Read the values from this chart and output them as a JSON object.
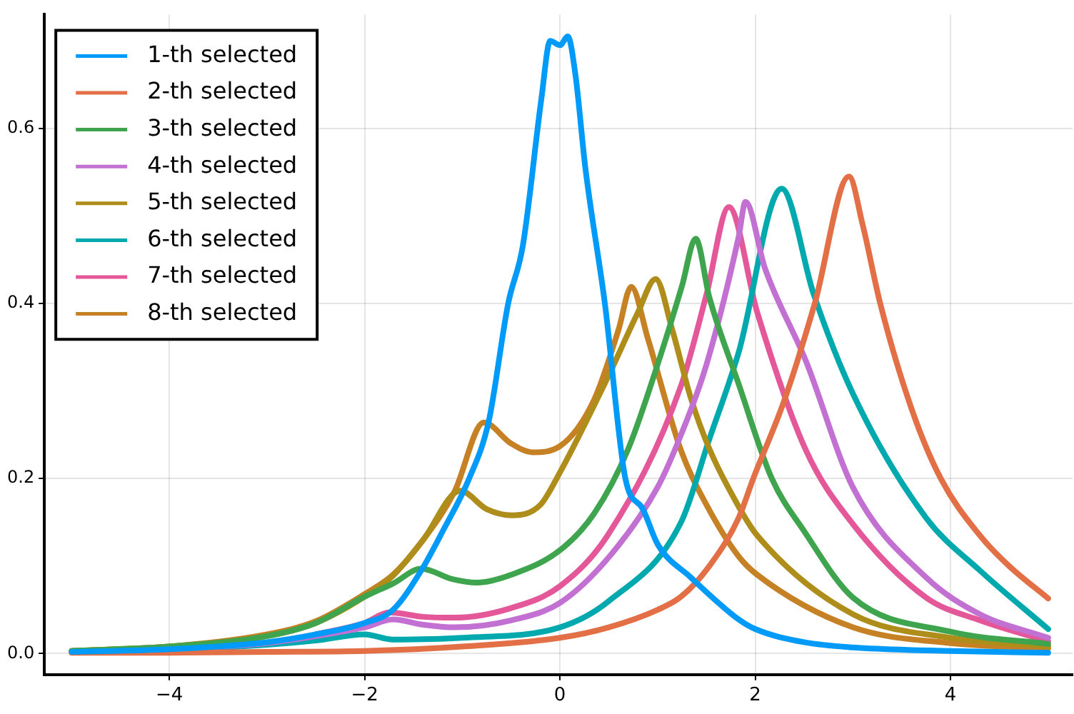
{
  "chart_data": {
    "type": "line",
    "xlim": [
      -5.28,
      5.25
    ],
    "ylim": [
      -0.024,
      0.73
    ],
    "xticks": [
      {
        "value": -4,
        "label": "−4"
      },
      {
        "value": -2,
        "label": "−2"
      },
      0,
      2,
      4
    ],
    "yticks": [
      {
        "value": 0,
        "label": "0.0"
      },
      {
        "value": 0.2,
        "label": "0.2"
      },
      {
        "value": 0.4,
        "label": "0.4"
      },
      {
        "value": 0.6,
        "label": "0.6"
      }
    ],
    "grid": true,
    "legend": "top left",
    "marker": "none",
    "line_style": "solid",
    "series": [
      {
        "name": "1-th selected",
        "color": "#009af9",
        "x": [
          -5,
          -4,
          -3,
          -2.5,
          -2,
          -1.71,
          -1.42,
          -1.2,
          -0.93,
          -0.73,
          -0.53,
          -0.38,
          -0.19,
          -0.1,
          0,
          0.08,
          0.16,
          0.26,
          0.46,
          0.67,
          0.85,
          1,
          1.34,
          1.83,
          2,
          2.5,
          3,
          4,
          5
        ],
        "values": [
          0.002,
          0.005,
          0.013,
          0.022,
          0.035,
          0.05,
          0.095,
          0.14,
          0.2,
          0.265,
          0.4,
          0.466,
          0.634,
          0.7,
          0.695,
          0.705,
          0.66,
          0.555,
          0.4,
          0.2,
          0.165,
          0.125,
          0.087,
          0.039,
          0.028,
          0.013,
          0.007,
          0.003,
          0.001
        ]
      },
      {
        "name": "2-th selected",
        "color": "#e26f46",
        "x": [
          -5,
          -4,
          -3,
          -2,
          -1,
          0,
          0.5,
          1,
          1.24,
          1.53,
          1.83,
          1.98,
          2.3,
          2.61,
          2.96,
          3.1,
          3.28,
          3.6,
          3.9,
          4.3,
          4.6,
          5
        ],
        "values": [
          0.001,
          0.001,
          0.002,
          0.003,
          0.008,
          0.018,
          0.03,
          0.05,
          0.065,
          0.1,
          0.155,
          0.2,
          0.29,
          0.4,
          0.545,
          0.49,
          0.4,
          0.28,
          0.2,
          0.135,
          0.1,
          0.063
        ]
      },
      {
        "name": "3-th selected",
        "color": "#3ea44e",
        "x": [
          -5,
          -4,
          -3,
          -2.5,
          -2,
          -1.71,
          -1.42,
          -1.1,
          -0.85,
          -0.5,
          0,
          0.35,
          0.7,
          1.04,
          1.25,
          1.39,
          1.53,
          1.83,
          2.17,
          2.5,
          3,
          4,
          5
        ],
        "values": [
          0.003,
          0.008,
          0.02,
          0.035,
          0.065,
          0.08,
          0.097,
          0.085,
          0.081,
          0.09,
          0.118,
          0.16,
          0.234,
          0.344,
          0.42,
          0.474,
          0.407,
          0.308,
          0.2,
          0.14,
          0.064,
          0.025,
          0.011
        ]
      },
      {
        "name": "4-th selected",
        "color": "#c270d2",
        "x": [
          -5,
          -4,
          -3,
          -2.5,
          -2,
          -1.71,
          -1.4,
          -1.08,
          -0.5,
          0,
          0.5,
          1,
          1.24,
          1.5,
          1.83,
          1.9,
          2.1,
          2.52,
          3,
          3.75,
          4.3,
          5
        ],
        "values": [
          0.002,
          0.005,
          0.012,
          0.02,
          0.03,
          0.039,
          0.033,
          0.03,
          0.038,
          0.058,
          0.11,
          0.19,
          0.25,
          0.33,
          0.476,
          0.516,
          0.44,
          0.334,
          0.19,
          0.087,
          0.045,
          0.018
        ]
      },
      {
        "name": "5-th selected",
        "color": "#ae8d1a",
        "x": [
          -5,
          -4,
          -3,
          -2.5,
          -2,
          -1.71,
          -1.4,
          -1.02,
          -0.75,
          -0.49,
          -0.2,
          0,
          0.5,
          0.8,
          0.98,
          1.15,
          1.34,
          1.53,
          1.83,
          2.02,
          3,
          4,
          5
        ],
        "values": [
          0.003,
          0.008,
          0.02,
          0.035,
          0.065,
          0.089,
          0.13,
          0.186,
          0.165,
          0.158,
          0.17,
          0.207,
          0.318,
          0.39,
          0.428,
          0.37,
          0.292,
          0.234,
          0.168,
          0.135,
          0.045,
          0.018,
          0.008
        ]
      },
      {
        "name": "6-th selected",
        "color": "#00a9ad",
        "x": [
          -5,
          -4,
          -3,
          -2.5,
          -2,
          -1.71,
          -1,
          0,
          0.5,
          1.24,
          1.53,
          1.83,
          2.27,
          2.6,
          3,
          3.75,
          4.3,
          5
        ],
        "values": [
          0.002,
          0.004,
          0.01,
          0.015,
          0.022,
          0.016,
          0.018,
          0.03,
          0.06,
          0.15,
          0.245,
          0.344,
          0.531,
          0.41,
          0.297,
          0.155,
          0.095,
          0.028
        ]
      },
      {
        "name": "7-th selected",
        "color": "#e4589a",
        "x": [
          -2.5,
          -2,
          -1.75,
          -1.4,
          -1.08,
          -0.5,
          0,
          0.5,
          1.24,
          1.5,
          1.73,
          2.02,
          2.52,
          3,
          3.75,
          4.3,
          5
        ],
        "values": [
          0.022,
          0.035,
          0.047,
          0.042,
          0.041,
          0.052,
          0.077,
          0.137,
          0.306,
          0.41,
          0.51,
          0.39,
          0.232,
          0.148,
          0.064,
          0.038,
          0.014
        ]
      },
      {
        "name": "8-th selected",
        "color": "#c68125",
        "x": [
          -5,
          -4,
          -3,
          -2.5,
          -2,
          -1.71,
          -1.4,
          -1.08,
          -0.78,
          -0.5,
          -0.28,
          0,
          0.35,
          0.6,
          0.73,
          0.9,
          1.24,
          1.5,
          1.83,
          2.02,
          3,
          4,
          5
        ],
        "values": [
          0.003,
          0.008,
          0.022,
          0.037,
          0.068,
          0.09,
          0.13,
          0.185,
          0.264,
          0.24,
          0.23,
          0.237,
          0.29,
          0.37,
          0.419,
          0.36,
          0.232,
          0.17,
          0.111,
          0.09,
          0.03,
          0.012,
          0.006
        ]
      }
    ]
  }
}
